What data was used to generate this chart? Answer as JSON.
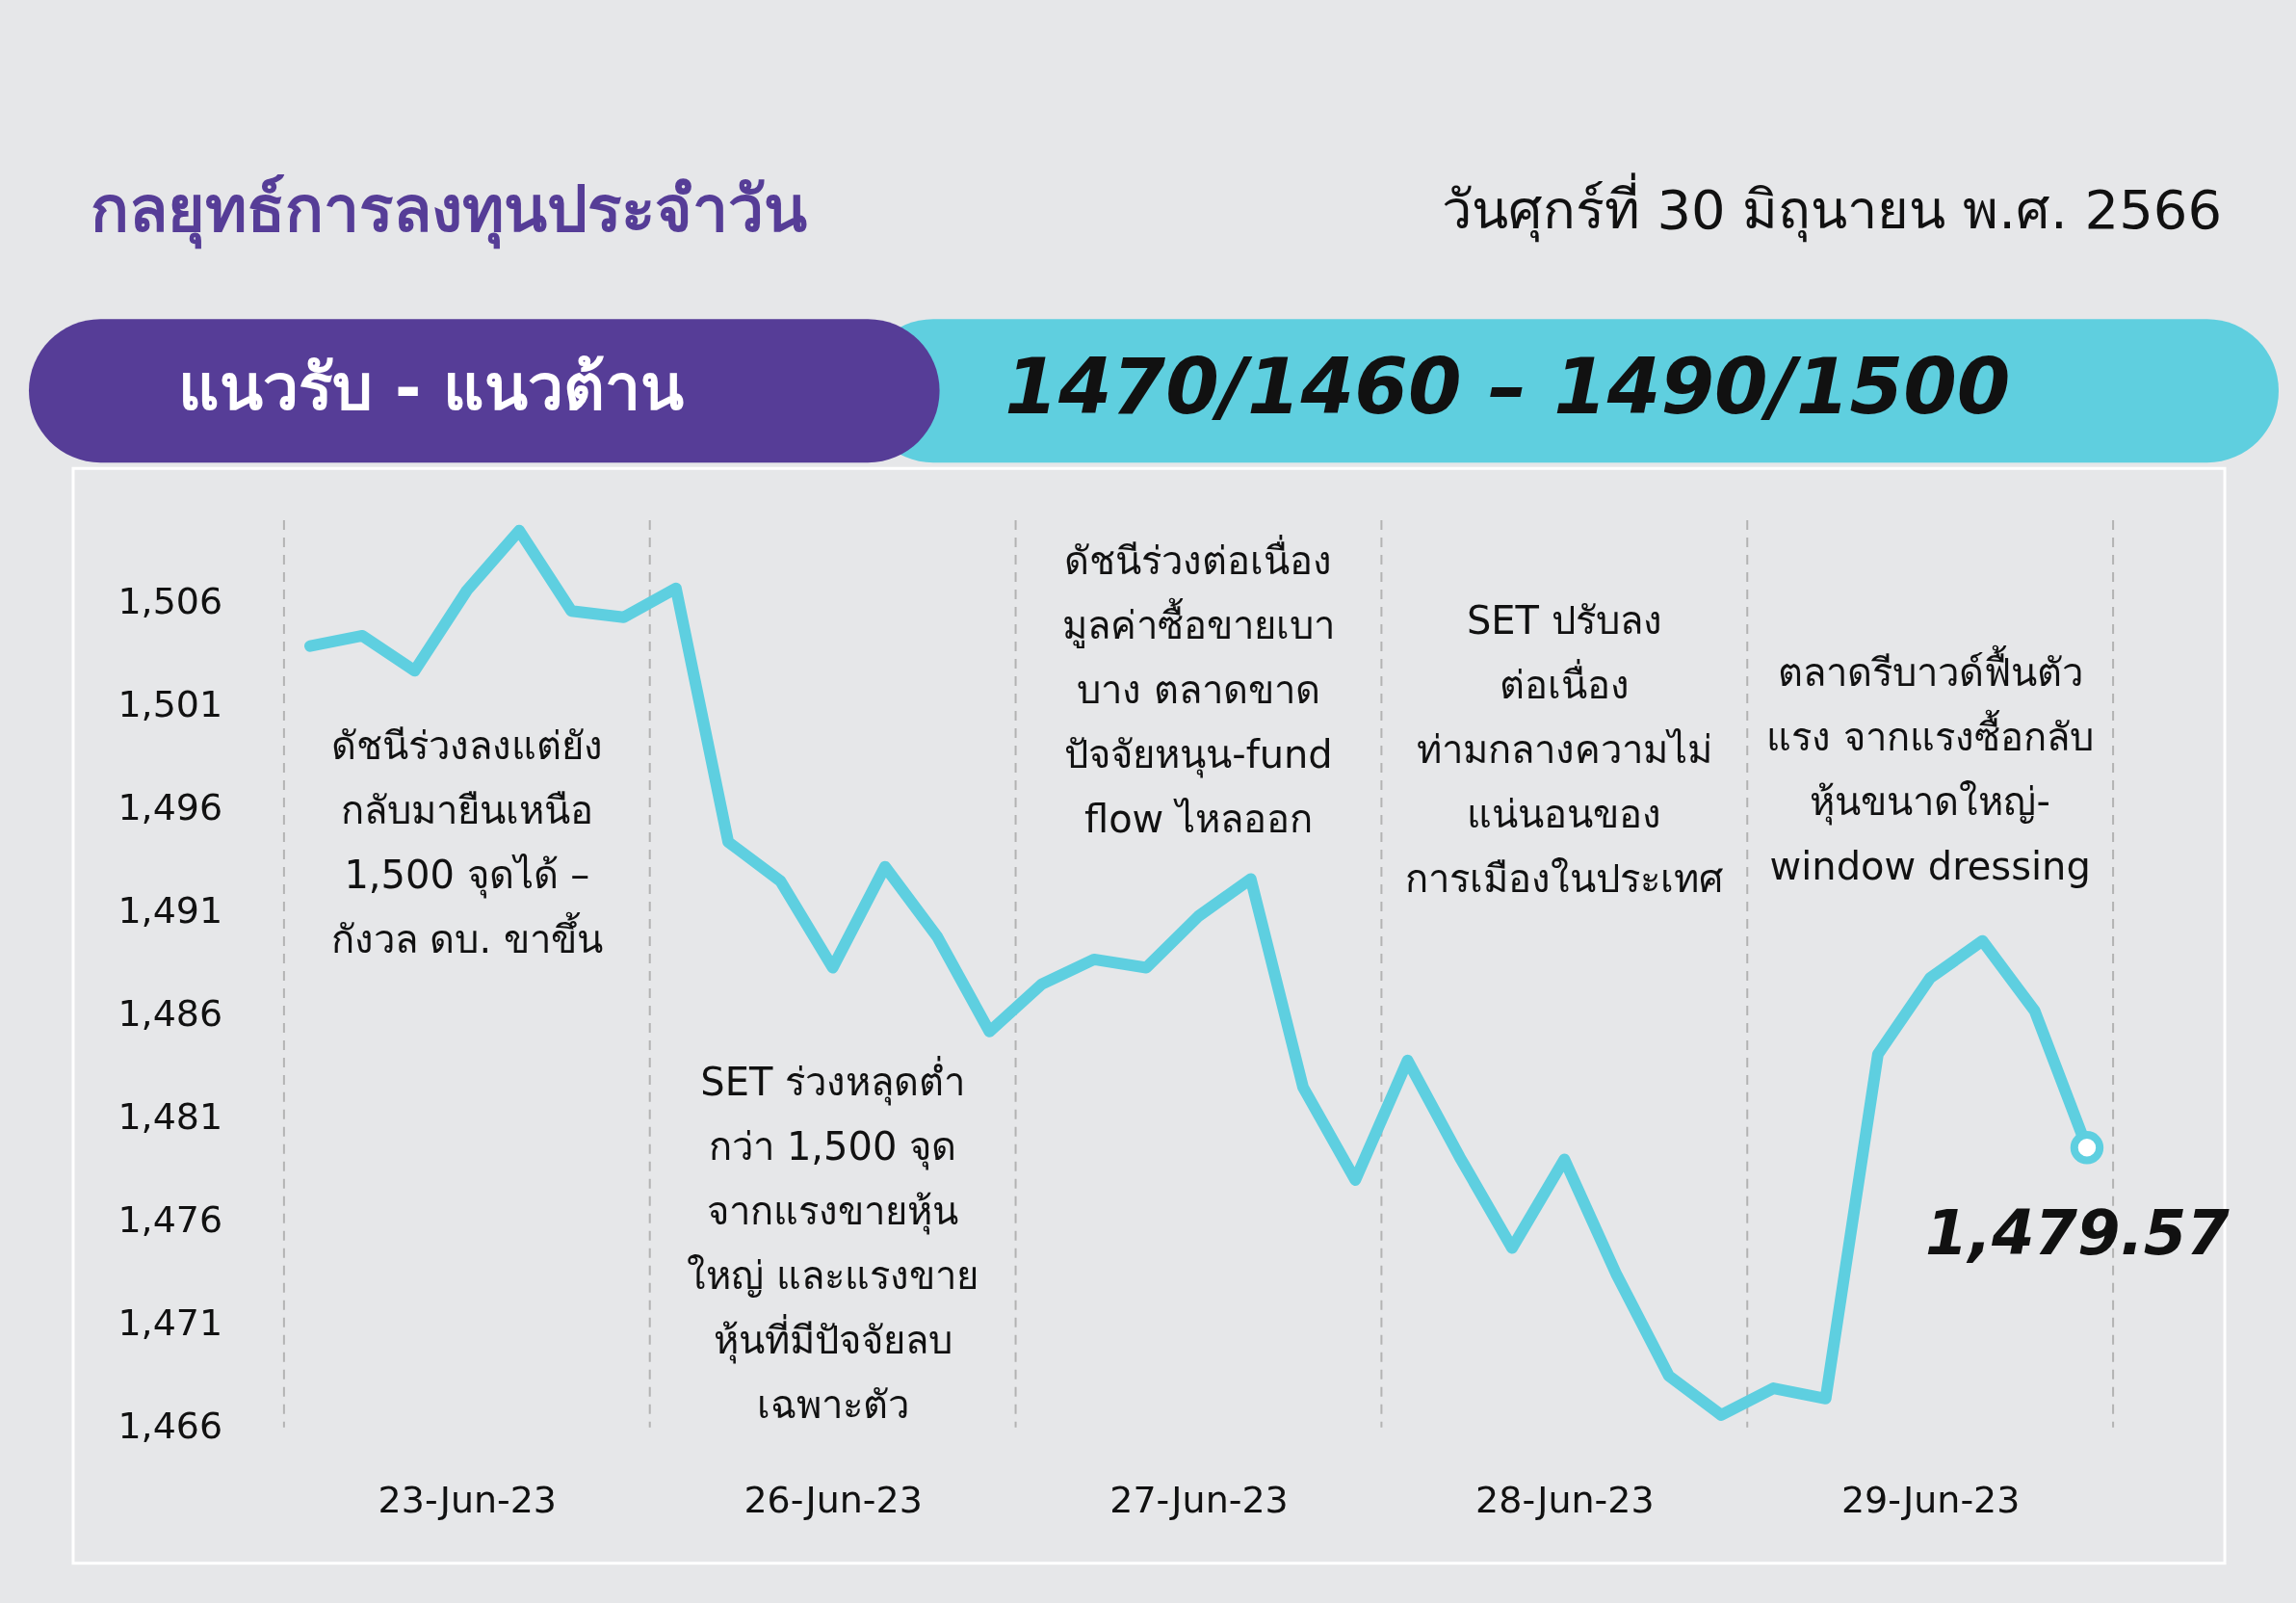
{
  "chart_data": {
    "type": "line",
    "title": "กลยุทธ์การลงทุนประจำวัน",
    "subtitle": "วันศุกร์ที่ 30 มิถุนายน พ.ศ. 2566",
    "annotations": [
      "แนวรับ - แนวต้าน",
      "1470/1460 – 1490/1500",
      "ดัชนีร่วงลงแต่ยัง\nกลับมายืนเหนือ\n1,500 จุดได้ –\nกังวล ดบ. ขาขึ้น",
      "SET ร่วงหลุดต่ำ\nกว่า 1,500 จุด\nจากแรงขายหุ้น\nใหญ่ และแรงขาย\nหุ้นที่มีปัจจัยลบ\nเฉพาะตัว",
      "ดัชนีร่วงต่อเนื่อง\nมูลค่าซื้อขายเบา\nบาง ตลาดขาด\nปัจจัยหนุน-fund\nflow ไหลออก",
      "SET ปรับลง\nต่อเนื่อง\nท่ามกลางความไม่\nแน่นอนของ\nการเมืองในประเทศ",
      "ตลาดรีบาวด์ฟื้นตัว\nแรง จากแรงซื้อกลับ\nหุ้นขนาดใหญ่-\nwindow dressing"
    ],
    "categories": [
      null,
      null,
      null,
      "23-Jun-23",
      null,
      null,
      null,
      null,
      null,
      null,
      "26-Jun-23",
      null,
      null,
      null,
      null,
      null,
      null,
      "27-Jun-23",
      null,
      null,
      null,
      null,
      null,
      null,
      "28-Jun-23",
      null,
      null,
      null,
      null,
      null,
      null,
      "29-Jun-23",
      null,
      null,
      null
    ],
    "series": [
      {
        "color": "#5ecfe0",
        "values": [
          1503.9,
          1504.4,
          1502.7,
          1506.6,
          1509.5,
          1505.6,
          1505.3,
          1506.7,
          1494.4,
          1492.5,
          1488.3,
          1493.2,
          1489.8,
          1485.2,
          1487.5,
          1488.7,
          1488.3,
          1490.8,
          1492.6,
          1482.5,
          1478.0,
          1483.8,
          1479.1,
          1474.7,
          1479.0,
          1473.4,
          1468.5,
          1466.6,
          1467.9,
          1467.4,
          1484.1,
          1487.8,
          1489.6,
          1486.2,
          1479.57
        ],
        "value_labels": [
          null,
          null,
          null,
          null,
          null,
          null,
          null,
          null,
          null,
          null,
          null,
          null,
          null,
          null,
          null,
          null,
          null,
          null,
          null,
          null,
          null,
          null,
          null,
          null,
          null,
          null,
          null,
          null,
          null,
          null,
          null,
          null,
          null,
          null,
          "1,479.57"
        ]
      }
    ],
    "ylim": [
      1466,
      1510
    ],
    "yticks": [
      {
        "value": 1466,
        "label": "1,466"
      },
      {
        "value": 1471,
        "label": "1,471"
      },
      {
        "value": 1476,
        "label": "1,476"
      },
      {
        "value": 1481,
        "label": "1,481"
      },
      {
        "value": 1486,
        "label": "1,486"
      },
      {
        "value": 1491,
        "label": "1,491"
      },
      {
        "value": 1496,
        "label": "1,496"
      },
      {
        "value": 1501,
        "label": "1,501"
      },
      {
        "value": 1506,
        "label": "1,506"
      }
    ],
    "grid": false,
    "line_style": "solid"
  }
}
